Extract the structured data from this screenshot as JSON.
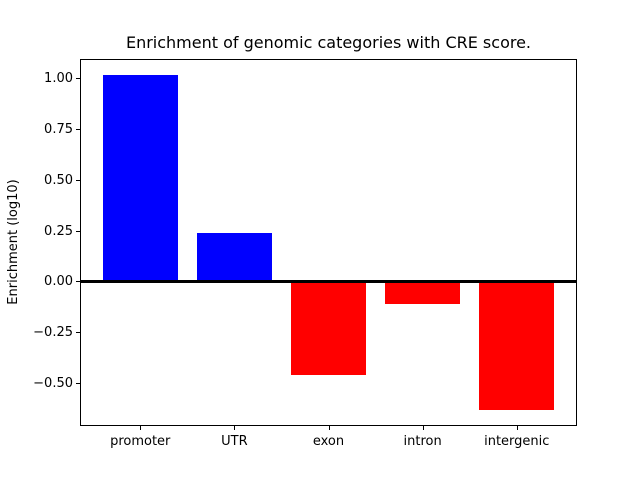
{
  "chart_data": {
    "type": "bar",
    "title": "Enrichment of genomic categories with CRE score.",
    "ylabel": "Enrichment (log10)",
    "xlabel": "",
    "categories": [
      "promoter",
      "UTR",
      "exon",
      "intron",
      "intergenic"
    ],
    "values": [
      1.02,
      0.24,
      -0.46,
      -0.11,
      -0.63
    ],
    "bar_colors": [
      "#0000ff",
      "#0000ff",
      "#ff0000",
      "#ff0000",
      "#ff0000"
    ],
    "positive_color": "#0000ff",
    "negative_color": "#ff0000",
    "yticks": [
      {
        "value": 1.0,
        "label": "1.00"
      },
      {
        "value": 0.75,
        "label": "0.75"
      },
      {
        "value": 0.5,
        "label": "0.50"
      },
      {
        "value": 0.25,
        "label": "0.25"
      },
      {
        "value": 0.0,
        "label": "0.00"
      },
      {
        "value": -0.25,
        "label": "−0.25"
      },
      {
        "value": -0.5,
        "label": "−0.50"
      }
    ],
    "ylim": [
      -0.71,
      1.1
    ],
    "xlim": [
      -0.64,
      4.64
    ],
    "bar_width": 0.8,
    "zero_line": {
      "color": "#000000",
      "thickness_px": 3
    },
    "grid": false,
    "legend": null,
    "frame_color": "#000000",
    "background_color": "#ffffff"
  }
}
